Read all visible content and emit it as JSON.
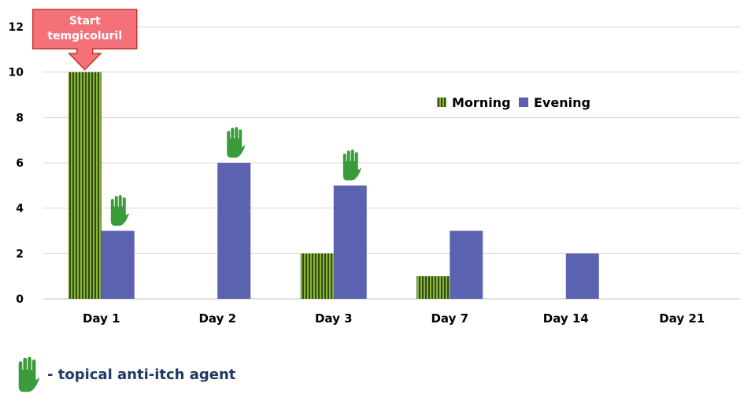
{
  "chart_data": {
    "type": "bar",
    "categories": [
      "Day 1",
      "Day 2",
      "Day 3",
      "Day 7",
      "Day 14",
      "Day 21"
    ],
    "series": [
      {
        "name": "Morning",
        "values": [
          10,
          0,
          2,
          1,
          0,
          0
        ],
        "color": "#6b8e23",
        "pattern": "vertical-stripes"
      },
      {
        "name": "Evening",
        "values": [
          3,
          6,
          5,
          3,
          2,
          0
        ],
        "color": "#5b63b0"
      }
    ],
    "yticks": [
      "0",
      "2",
      "4",
      "6",
      "8",
      "10",
      "12"
    ],
    "ylim": [
      0,
      12
    ],
    "grid": true,
    "legend_position": "right",
    "annotations": {
      "callout": {
        "lines": [
          "Start",
          "temgicoluril"
        ],
        "category": "Day 1"
      },
      "hand_markers": [
        "Day 1",
        "Day 2",
        "Day 3"
      ],
      "hand_icon": "green-hand-icon",
      "hand_color": "#3a9b3a"
    }
  },
  "footnote": {
    "text": "- topical anti-itch agent",
    "icon": "green-hand-icon"
  },
  "colors": {
    "callout_fill": "#f4717a",
    "callout_border": "#c0392b",
    "grid": "#d9d9d9",
    "footnote_text": "#1f3864"
  }
}
